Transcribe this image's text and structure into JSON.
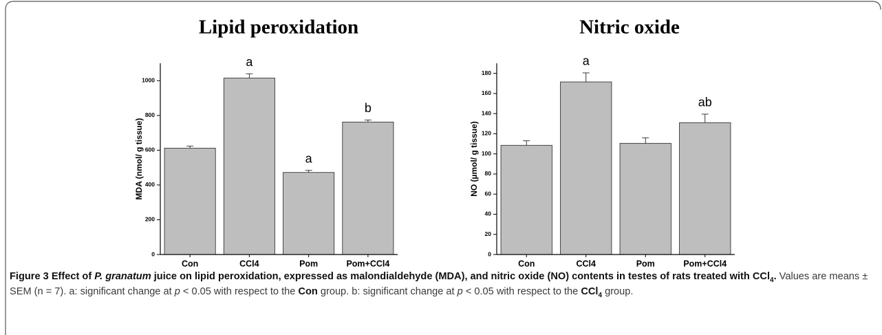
{
  "chart_data": [
    {
      "type": "bar",
      "title": "Lipid peroxidation",
      "ylabel": "MDA (nmol/ g tissue)",
      "categories": [
        "Con",
        "CCl4",
        "Pom",
        "Pom+CCl4"
      ],
      "values": [
        612,
        1015,
        472,
        762
      ],
      "errors": [
        12,
        25,
        12,
        12
      ],
      "annotations": [
        null,
        "a",
        "a",
        "b"
      ],
      "color": "#bebebe",
      "ylim": [
        0,
        1100
      ],
      "yticks": [
        0,
        200,
        400,
        600,
        800,
        1000
      ]
    },
    {
      "type": "bar",
      "title": "Nitric oxide",
      "ylabel": "NO (µmol/ g tissue)",
      "categories": [
        "Con",
        "CCl4",
        "Pom",
        "Pom+CCl4"
      ],
      "values": [
        108.5,
        171.5,
        110.5,
        131
      ],
      "errors": [
        4.5,
        9,
        5.5,
        8.5
      ],
      "annotations": [
        null,
        "a",
        null,
        "ab"
      ],
      "color": "#bebebe",
      "ylim": [
        0,
        190
      ],
      "yticks": [
        0,
        20,
        40,
        60,
        80,
        100,
        120,
        140,
        160,
        180
      ]
    }
  ],
  "caption": {
    "parts": [
      "Figure 3 Effect of ",
      "P. granatum",
      " juice on lipid peroxidation, expressed as malondialdehyde (MDA), and nitric oxide (NO) contents in testes of rats treated with CCl",
      "4",
      ".",
      " Values are means ± SEM (n = 7). a: significant change at ",
      "p",
      " < 0.05 with respect to the ",
      "Con",
      " group. b: significant change at ",
      "p",
      " < 0.05 with respect to the ",
      "CCl",
      "4",
      " group."
    ]
  }
}
